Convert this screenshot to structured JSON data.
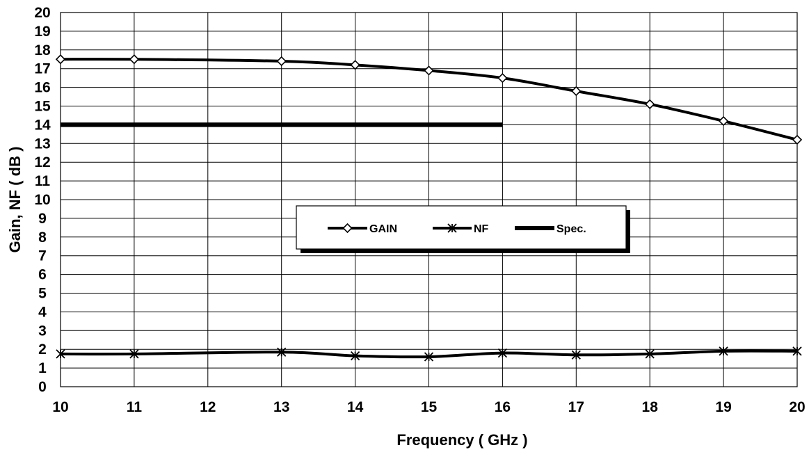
{
  "chart_data": {
    "type": "line",
    "title": "",
    "xlabel": "Frequency ( GHz )",
    "ylabel": "Gain, NF ( dB )",
    "xlim": [
      10,
      20
    ],
    "ylim": [
      0,
      20
    ],
    "x_ticks": [
      "10",
      "11",
      "12",
      "13",
      "14",
      "15",
      "16",
      "17",
      "18",
      "19",
      "20"
    ],
    "y_ticks": [
      "0",
      "1",
      "2",
      "3",
      "4",
      "5",
      "6",
      "7",
      "8",
      "9",
      "10",
      "11",
      "12",
      "13",
      "14",
      "15",
      "16",
      "17",
      "18",
      "19",
      "20"
    ],
    "grid": true,
    "legend_position": "center",
    "series": [
      {
        "name": "GAIN",
        "marker": "diamond",
        "color": "#000000",
        "x": [
          10,
          11,
          13,
          14,
          15,
          16,
          17,
          18,
          19,
          20
        ],
        "values": [
          17.5,
          17.5,
          17.4,
          17.2,
          16.9,
          16.5,
          15.8,
          15.1,
          14.2,
          13.2
        ]
      },
      {
        "name": "NF",
        "marker": "asterisk",
        "color": "#000000",
        "x": [
          10,
          11,
          13,
          14,
          15,
          16,
          17,
          18,
          19,
          20
        ],
        "values": [
          1.75,
          1.75,
          1.85,
          1.65,
          1.6,
          1.8,
          1.7,
          1.75,
          1.9,
          1.9
        ]
      },
      {
        "name": "Spec.",
        "marker": "none",
        "color": "#000000",
        "x": [
          10,
          16
        ],
        "values": [
          14,
          14
        ]
      }
    ]
  }
}
